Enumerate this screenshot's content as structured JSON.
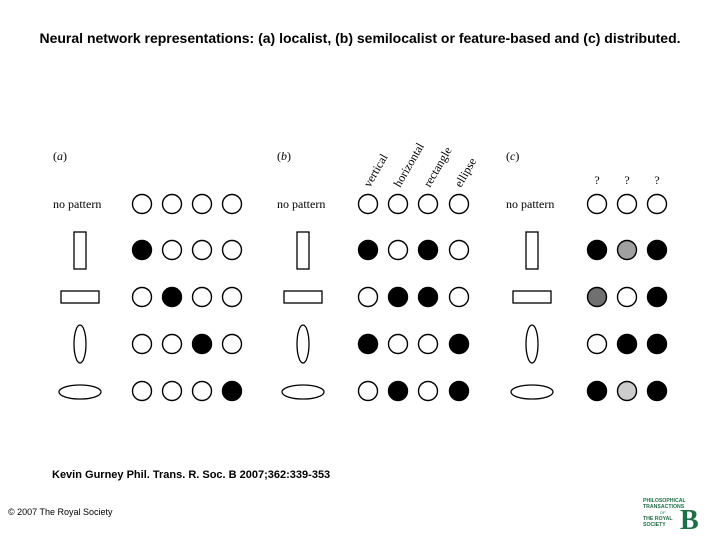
{
  "title": "Neural network representations: (a) localist, (b) semilocalist or feature-based and (c) distributed.",
  "citation": "Kevin Gurney Phil. Trans. R. Soc. B 2007;362:339-353",
  "copyright": "© 2007 The Royal Society",
  "logo": {
    "line1": "PHILOSOPHICAL",
    "line2": "TRANSACTIONS",
    "line3": "OF",
    "line4": "THE ROYAL",
    "line5": "SOCIETY",
    "letter": "B",
    "color": "#1e6e46"
  },
  "panels": [
    {
      "label_open": "(",
      "label_letter": "a",
      "label_close": ")",
      "no_pattern": "no pattern",
      "unit_labels": [],
      "rows": [
        [
          "white",
          "white",
          "white",
          "white"
        ],
        [
          "black",
          "white",
          "white",
          "white"
        ],
        [
          "white",
          "black",
          "white",
          "white"
        ],
        [
          "white",
          "white",
          "black",
          "white"
        ],
        [
          "white",
          "white",
          "white",
          "black"
        ]
      ]
    },
    {
      "label_open": "(",
      "label_letter": "b",
      "label_close": ")",
      "no_pattern": "no pattern",
      "unit_labels": [
        "vertical",
        "horizontal",
        "rectangle",
        "ellipse"
      ],
      "rows": [
        [
          "white",
          "white",
          "white",
          "white"
        ],
        [
          "black",
          "white",
          "black",
          "white"
        ],
        [
          "white",
          "black",
          "black",
          "white"
        ],
        [
          "black",
          "white",
          "white",
          "black"
        ],
        [
          "white",
          "black",
          "white",
          "black"
        ]
      ]
    },
    {
      "label_open": "(",
      "label_letter": "c",
      "label_close": ")",
      "no_pattern": "no pattern",
      "unit_labels": [
        "?",
        "?",
        "?"
      ],
      "rows": [
        [
          "white",
          "white",
          "white"
        ],
        [
          "black",
          "#a0a0a0",
          "black"
        ],
        [
          "#707070",
          "white",
          "black"
        ],
        [
          "white",
          "black",
          "black"
        ],
        [
          "black",
          "#cccccc",
          "black"
        ]
      ]
    }
  ]
}
